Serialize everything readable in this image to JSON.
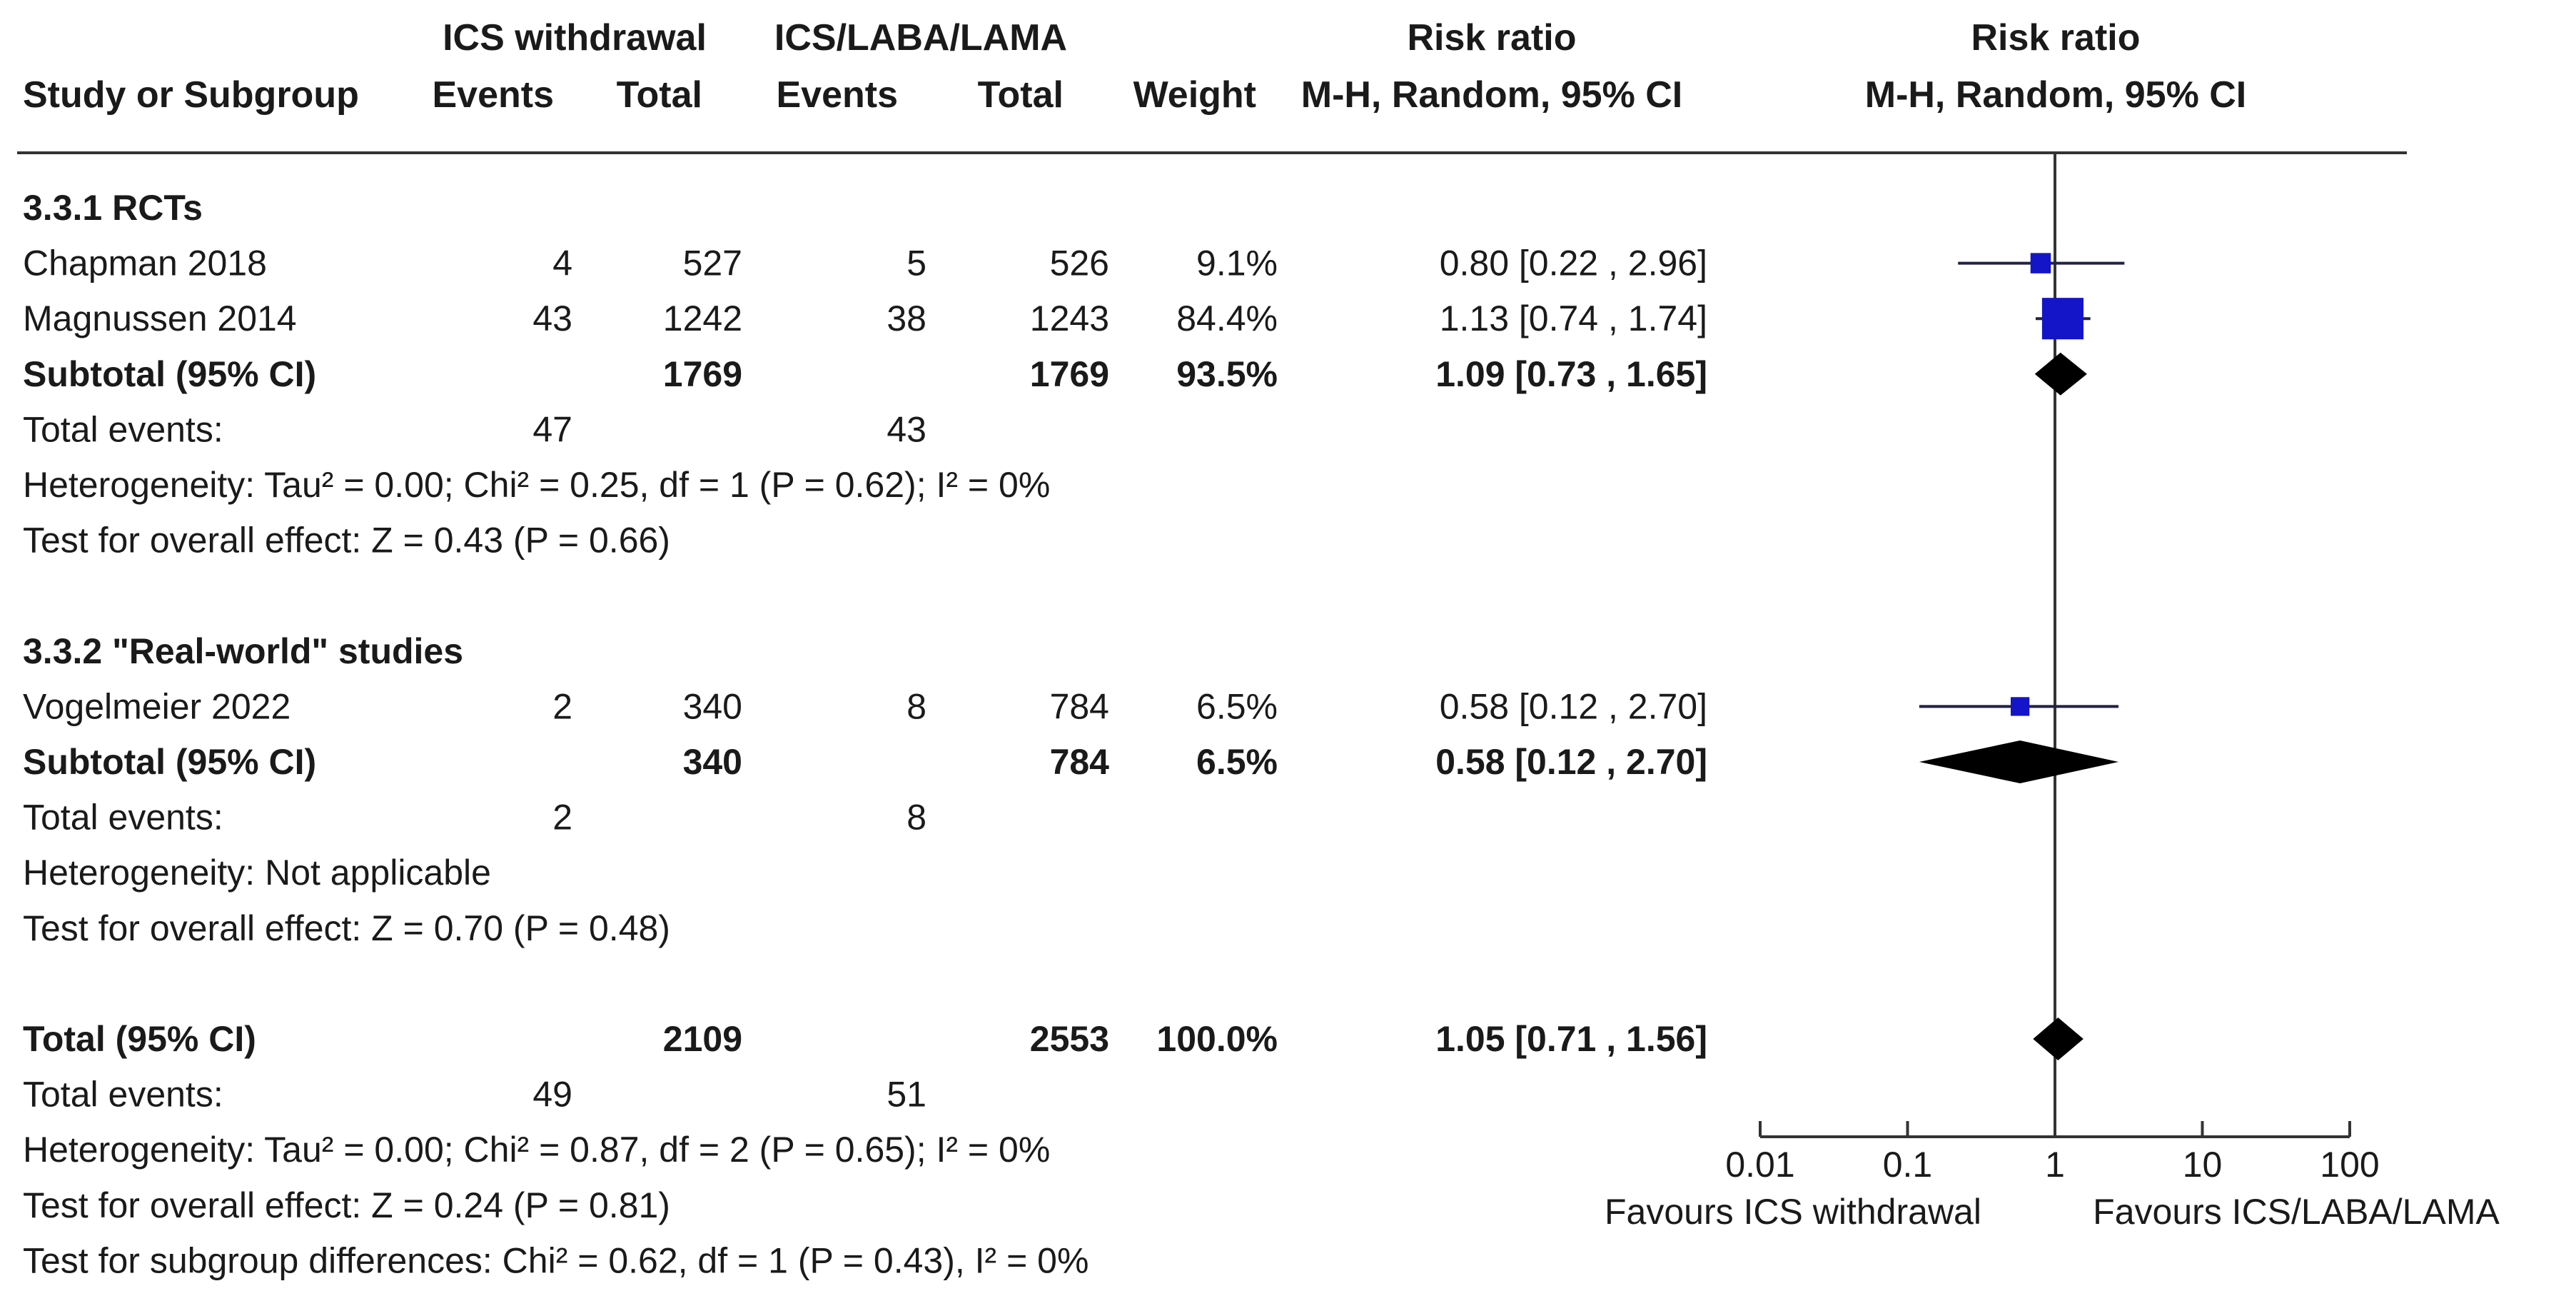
{
  "headers": {
    "group1": "ICS withdrawal",
    "group2": "ICS/LABA/LAMA",
    "risk_ratio_table": "Risk ratio",
    "risk_ratio_plot": "Risk ratio",
    "study": "Study or Subgroup",
    "events1": "Events",
    "total1": "Total",
    "events2": "Events",
    "total2": "Total",
    "weight": "Weight",
    "method_table": "M-H, Random, 95% CI",
    "method_plot": "M-H, Random, 95% CI"
  },
  "rows": [
    {
      "type": "subgroup_title",
      "label": "3.3.1 RCTs"
    },
    {
      "type": "study",
      "label": "Chapman 2018",
      "e1": "4",
      "t1": "527",
      "e2": "5",
      "t2": "526",
      "weight": "9.1%",
      "ci_text": "0.80 [0.22 , 2.96]"
    },
    {
      "type": "study",
      "label": "Magnussen 2014",
      "e1": "43",
      "t1": "1242",
      "e2": "38",
      "t2": "1243",
      "weight": "84.4%",
      "ci_text": "1.13 [0.74 , 1.74]"
    },
    {
      "type": "subtotal",
      "label": "Subtotal (95% CI)",
      "t1": "1769",
      "t2": "1769",
      "weight": "93.5%",
      "ci_text": "1.09 [0.73 , 1.65]"
    },
    {
      "type": "events",
      "label": "Total events:",
      "e1": "47",
      "e2": "43"
    },
    {
      "type": "note",
      "label": "Heterogeneity: Tau² = 0.00; Chi² = 0.25, df = 1 (P = 0.62); I² = 0%"
    },
    {
      "type": "note",
      "label": "Test for overall effect: Z = 0.43 (P = 0.66)"
    },
    {
      "type": "blank"
    },
    {
      "type": "subgroup_title",
      "label": "3.3.2 \"Real-world\" studies"
    },
    {
      "type": "study",
      "label": "Vogelmeier 2022",
      "e1": "2",
      "t1": "340",
      "e2": "8",
      "t2": "784",
      "weight": "6.5%",
      "ci_text": "0.58 [0.12 , 2.70]"
    },
    {
      "type": "subtotal",
      "label": "Subtotal (95% CI)",
      "t1": "340",
      "t2": "784",
      "weight": "6.5%",
      "ci_text": "0.58 [0.12 , 2.70]"
    },
    {
      "type": "events",
      "label": "Total events:",
      "e1": "2",
      "e2": "8"
    },
    {
      "type": "note",
      "label": "Heterogeneity: Not applicable"
    },
    {
      "type": "note",
      "label": "Test for overall effect: Z = 0.70 (P = 0.48)"
    },
    {
      "type": "blank"
    },
    {
      "type": "total",
      "label": "Total (95% CI)",
      "t1": "2109",
      "t2": "2553",
      "weight": "100.0%",
      "ci_text": "1.05 [0.71 , 1.56]"
    },
    {
      "type": "events",
      "label": "Total events:",
      "e1": "49",
      "e2": "51"
    },
    {
      "type": "note",
      "label": "Heterogeneity: Tau² = 0.00; Chi² = 0.87, df = 2 (P = 0.65); I² = 0%"
    },
    {
      "type": "note",
      "label": "Test for overall effect: Z = 0.24 (P = 0.81)"
    },
    {
      "type": "note",
      "label": "Test for subgroup differences: Chi² = 0.62, df = 1 (P = 0.43), I² = 0%"
    }
  ],
  "chart_data": {
    "type": "forest",
    "scale": "log",
    "xlim": [
      0.01,
      100
    ],
    "ticks": [
      {
        "value": 0.01,
        "label": "0.01"
      },
      {
        "value": 0.1,
        "label": "0.1"
      },
      {
        "value": 1,
        "label": "1"
      },
      {
        "value": 10,
        "label": "10"
      },
      {
        "value": 100,
        "label": "100"
      }
    ],
    "null_line": 1,
    "left_label": "Favours ICS withdrawal",
    "right_label": "Favours ICS/LABA/LAMA",
    "study_color": "#1414c8",
    "summary_color": "#000000",
    "estimates": [
      {
        "row": 1,
        "kind": "study",
        "rr": 0.8,
        "lo": 0.22,
        "hi": 2.96,
        "weight": 9.1
      },
      {
        "row": 2,
        "kind": "study",
        "rr": 1.13,
        "lo": 0.74,
        "hi": 1.74,
        "weight": 84.4
      },
      {
        "row": 3,
        "kind": "summary",
        "rr": 1.09,
        "lo": 0.73,
        "hi": 1.65
      },
      {
        "row": 9,
        "kind": "study",
        "rr": 0.58,
        "lo": 0.12,
        "hi": 2.7,
        "weight": 6.5
      },
      {
        "row": 10,
        "kind": "summary",
        "rr": 0.58,
        "lo": 0.12,
        "hi": 2.7
      },
      {
        "row": 15,
        "kind": "summary",
        "rr": 1.05,
        "lo": 0.71,
        "hi": 1.56
      }
    ]
  }
}
